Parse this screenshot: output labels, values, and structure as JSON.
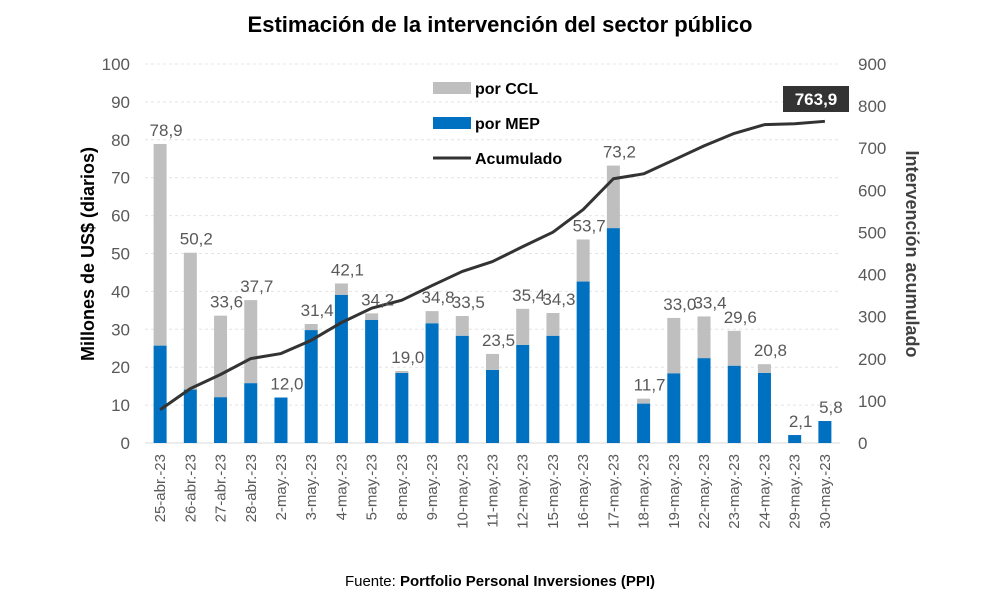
{
  "chart_data": {
    "type": "bar",
    "stacked": true,
    "title": "Estimación de la intervención del sector público",
    "ylabel": "Millones de US$ (diarios)",
    "y2label": "Intervención acumulado",
    "ylim": [
      0,
      100
    ],
    "yticks": [
      0,
      10,
      20,
      30,
      40,
      50,
      60,
      70,
      80,
      90,
      100
    ],
    "y2lim": [
      0,
      900
    ],
    "y2ticks": [
      0,
      100,
      200,
      300,
      400,
      500,
      600,
      700,
      800,
      900
    ],
    "grid": true,
    "legend_position": "top-center",
    "categories": [
      "25-abr.-23",
      "26-abr.-23",
      "27-abr.-23",
      "28-abr.-23",
      "2-may.-23",
      "3-may.-23",
      "4-may.-23",
      "5-may.-23",
      "8-may.-23",
      "9-may.-23",
      "10-may.-23",
      "11-may.-23",
      "12-may.-23",
      "15-may.-23",
      "16-may.-23",
      "17-may.-23",
      "18-may.-23",
      "19-may.-23",
      "22-may.-23",
      "23-may.-23",
      "24-may.-23",
      "29-may.-23",
      "30-may.-23"
    ],
    "totals_labels": [
      "78,9",
      "50,2",
      "33,6",
      "37,7",
      "12,0",
      "31,4",
      "42,1",
      "34,2",
      "19,0",
      "34,8",
      "33,5",
      "23,5",
      "35,4",
      "34,3",
      "53,7",
      "73,2",
      "11,7",
      "33,0",
      "33,4",
      "29,6",
      "20,8",
      "2,1",
      "5,8"
    ],
    "totals": [
      78.9,
      50.2,
      33.6,
      37.7,
      12.0,
      31.4,
      42.1,
      34.2,
      19.0,
      34.8,
      33.5,
      23.5,
      35.4,
      34.3,
      53.7,
      73.2,
      11.7,
      33.0,
      33.4,
      29.6,
      20.8,
      2.1,
      5.8
    ],
    "series": [
      {
        "name": "por CCL",
        "color": "#bfbfbf",
        "axis": "left",
        "values": [
          53.2,
          36.1,
          21.5,
          21.9,
          0.0,
          1.6,
          3.0,
          1.7,
          0.5,
          3.2,
          5.2,
          4.2,
          9.5,
          6.0,
          11.1,
          16.5,
          1.3,
          14.6,
          11.0,
          9.2,
          2.3,
          0.0,
          0.0
        ]
      },
      {
        "name": "por MEP",
        "color": "#0070c0",
        "axis": "left",
        "values": [
          25.7,
          14.1,
          12.1,
          15.8,
          12.0,
          29.8,
          39.1,
          32.5,
          18.5,
          31.6,
          28.3,
          19.3,
          25.9,
          28.3,
          42.6,
          56.7,
          10.4,
          18.4,
          22.4,
          20.4,
          18.5,
          2.1,
          5.8
        ]
      },
      {
        "name": "Acumulado",
        "color": "#333333",
        "axis": "right",
        "type": "line",
        "values": [
          78.9,
          129.1,
          162.7,
          200.4,
          212.4,
          243.8,
          285.9,
          320.1,
          339.1,
          373.9,
          407.4,
          430.9,
          466.3,
          500.6,
          554.3,
          627.5,
          639.2,
          672.2,
          705.6,
          735.2,
          756.0,
          758.1,
          763.9
        ]
      }
    ],
    "annotation": "763,9",
    "source_prefix": "Fuente: ",
    "source": "Portfolio Personal Inversiones (PPI)"
  }
}
